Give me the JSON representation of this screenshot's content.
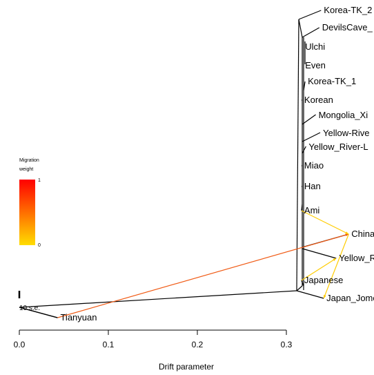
{
  "chart_data": {
    "type": "tree",
    "xlabel": "Drift parameter",
    "x_ticks": [
      "0.0",
      "0.1",
      "0.2",
      "0.3"
    ],
    "xlim": [
      0.0,
      0.32
    ],
    "scale_bar_label": "10 s.e.",
    "legend": {
      "title_line1": "Migration",
      "title_line2": "weight",
      "max_label": "1",
      "min_label": "0",
      "color_high": "#ff0000",
      "color_low": "#ffdd00"
    },
    "leaves": [
      {
        "name": "Korea-TK_2",
        "drift": 0.339
      },
      {
        "name": "DevilsCave_",
        "drift": 0.337
      },
      {
        "name": "Ulchi",
        "drift": 0.318
      },
      {
        "name": "Even",
        "drift": 0.318
      },
      {
        "name": "Korea-TK_1",
        "drift": 0.321
      },
      {
        "name": "Korean",
        "drift": 0.317
      },
      {
        "name": "Mongolia_Xi",
        "drift": 0.333
      },
      {
        "name": "Yellow-Rive",
        "drift": 0.338
      },
      {
        "name": "Yellow_River-L",
        "drift": 0.322
      },
      {
        "name": "Miao",
        "drift": 0.317
      },
      {
        "name": "Han",
        "drift": 0.317
      },
      {
        "name": "Ami",
        "drift": 0.317
      },
      {
        "name": "China",
        "drift": 0.37
      },
      {
        "name": "Yellow_R",
        "drift": 0.356
      },
      {
        "name": "Japanese",
        "drift": 0.317
      },
      {
        "name": "Japan_Jomo",
        "drift": 0.342
      },
      {
        "name": "Tianyuan",
        "drift": 0.043
      }
    ],
    "migration_edges": [
      {
        "from": "Tianyuan",
        "to": "China",
        "weight": 0.72,
        "color": "#f05a14"
      },
      {
        "from": "Ami",
        "to": "China",
        "weight": 0.05,
        "color": "#ffcc00"
      },
      {
        "from": "China",
        "to": "Japan_Jomo",
        "weight": 0.05,
        "color": "#ffcc00"
      },
      {
        "from": "Japanese",
        "to": "Yellow_R",
        "weight": 0.05,
        "color": "#ffcc00"
      }
    ]
  }
}
